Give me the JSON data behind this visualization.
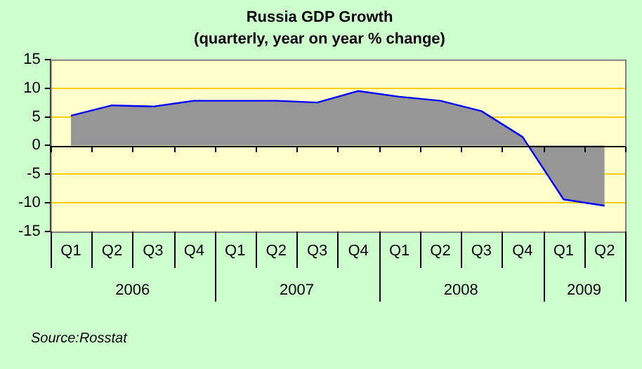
{
  "chart_data": {
    "type": "area",
    "title": "Russia GDP Growth",
    "subtitle": "(quarterly, year on year % change)",
    "categories": [
      "Q1",
      "Q2",
      "Q3",
      "Q4",
      "Q1",
      "Q2",
      "Q3",
      "Q4",
      "Q1",
      "Q2",
      "Q3",
      "Q4",
      "Q1",
      "Q2"
    ],
    "series": [
      {
        "color": "#969696",
        "values": [
          5.2,
          7.0,
          6.8,
          7.8,
          7.8,
          7.8,
          7.5,
          9.5,
          8.5,
          7.8,
          6.0,
          1.5,
          -9.4,
          -10.5
        ]
      }
    ],
    "ylim": [
      -15,
      15
    ],
    "yticks": [
      -15,
      -10,
      -5,
      0,
      5,
      10,
      15
    ],
    "grid": "y",
    "legend": false,
    "annotations": [
      "2006",
      "2007",
      "2008",
      "2009",
      "Source:Rosstat"
    ]
  }
}
